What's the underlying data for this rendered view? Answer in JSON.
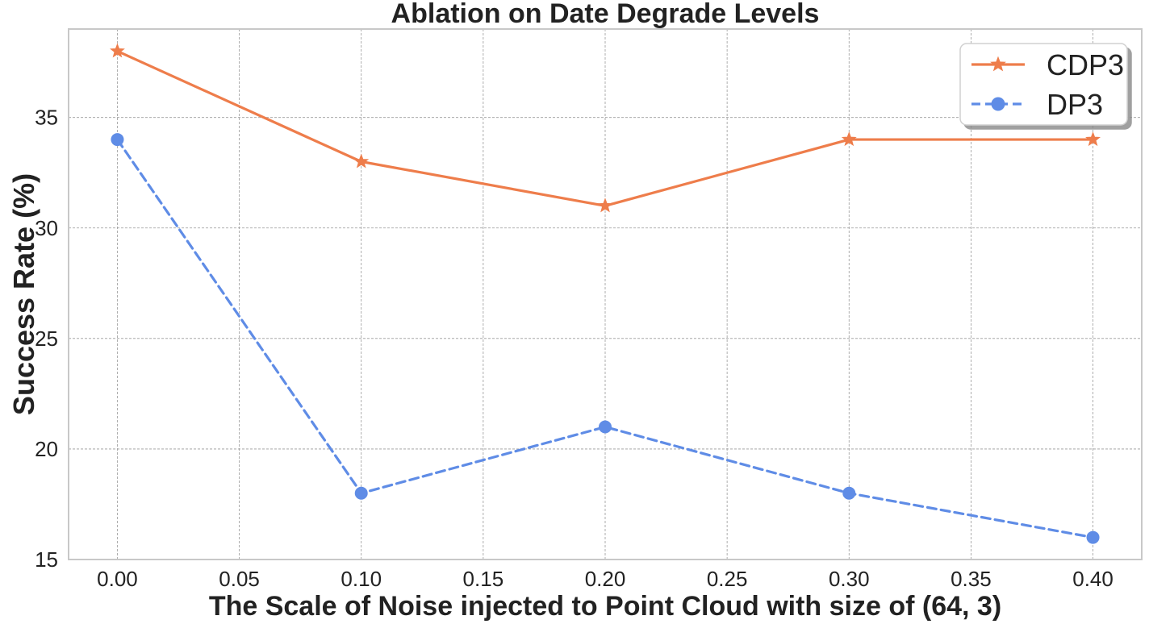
{
  "chart_data": {
    "type": "line",
    "title": "Ablation on Date Degrade Levels",
    "xlabel": "The Scale of Noise injected to Point Cloud with size of (64, 3)",
    "ylabel": "Success Rate (%)",
    "x": [
      0.0,
      0.1,
      0.2,
      0.3,
      0.4
    ],
    "xlim": [
      -0.02,
      0.42
    ],
    "ylim": [
      15,
      39
    ],
    "xticks": [
      "0.00",
      "0.05",
      "0.10",
      "0.15",
      "0.20",
      "0.25",
      "0.30",
      "0.35",
      "0.40"
    ],
    "yticks": [
      "15",
      "20",
      "25",
      "30",
      "35"
    ],
    "grid": true,
    "legend_position": "top-right",
    "series": [
      {
        "name": "CDP3",
        "values": [
          38,
          33,
          31,
          34,
          34
        ],
        "color": "#EE7D4B",
        "line_style": "solid",
        "marker": "star"
      },
      {
        "name": "DP3",
        "values": [
          34,
          18,
          21,
          18,
          16
        ],
        "color": "#5F8CE6",
        "line_style": "dashed",
        "marker": "circle"
      }
    ]
  }
}
